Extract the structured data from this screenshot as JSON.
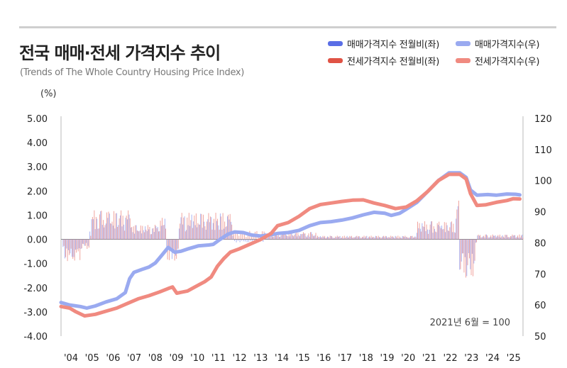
{
  "header": {
    "title": "전국 매매·전세 가격지수 추이",
    "subtitle": "(Trends of The Whole Country Housing Price Index)",
    "unit_left": "(%)"
  },
  "legend": [
    {
      "label": "매매가격지수 전월비(좌)",
      "color": "#5a6ee6"
    },
    {
      "label": "매매가격지수(우)",
      "color": "#9aaaf0"
    },
    {
      "label": "전세가격지수 전월비(좌)",
      "color": "#e05345"
    },
    {
      "label": "전세가격지수(우)",
      "color": "#f08a80"
    }
  ],
  "chart_data": {
    "type": "line",
    "left_axis": {
      "min": -4.0,
      "max": 5.0,
      "ticks": [
        "5.00",
        "4.00",
        "3.00",
        "2.00",
        "1.00",
        "0.00",
        "-1.00",
        "-2.00",
        "-3.00",
        "-4.00"
      ]
    },
    "right_axis": {
      "min": 50,
      "max": 120,
      "ticks": [
        "120",
        "110",
        "100",
        "90",
        "80",
        "70",
        "60",
        "50"
      ]
    },
    "x_ticks": [
      "'04",
      "'05",
      "'06",
      "'07",
      "'08",
      "'09",
      "'10",
      "'11",
      "'12",
      "'13",
      "'14",
      "'15",
      "'16",
      "'17",
      "'18",
      "'19",
      "'20",
      "'21",
      "'22",
      "'23",
      "'24",
      "'25"
    ],
    "note": "2021년 6월 = 100",
    "series_index": [
      {
        "name": "매매가격지수(우)",
        "color": "#9aaaf0",
        "points": [
          [
            2003.9,
            60.8
          ],
          [
            2004.3,
            60.0
          ],
          [
            2004.8,
            59.5
          ],
          [
            2005.1,
            59.0
          ],
          [
            2005.5,
            59.7
          ],
          [
            2006.0,
            61.0
          ],
          [
            2006.5,
            62.0
          ],
          [
            2006.9,
            64.0
          ],
          [
            2007.1,
            68.5
          ],
          [
            2007.3,
            70.5
          ],
          [
            2007.7,
            71.5
          ],
          [
            2008.0,
            72.2
          ],
          [
            2008.3,
            73.5
          ],
          [
            2008.6,
            76.0
          ],
          [
            2008.9,
            78.5
          ],
          [
            2009.2,
            77.0
          ],
          [
            2009.5,
            77.3
          ],
          [
            2009.8,
            78.0
          ],
          [
            2010.3,
            79.0
          ],
          [
            2010.8,
            79.3
          ],
          [
            2011.0,
            79.5
          ],
          [
            2011.3,
            81.0
          ],
          [
            2011.7,
            82.8
          ],
          [
            2012.0,
            83.5
          ],
          [
            2012.4,
            83.3
          ],
          [
            2012.8,
            82.5
          ],
          [
            2013.2,
            82.2
          ],
          [
            2013.6,
            82.5
          ],
          [
            2014.0,
            83.0
          ],
          [
            2014.5,
            83.3
          ],
          [
            2015.0,
            84.0
          ],
          [
            2015.5,
            85.5
          ],
          [
            2016.0,
            86.5
          ],
          [
            2016.5,
            86.8
          ],
          [
            2017.0,
            87.3
          ],
          [
            2017.5,
            88.0
          ],
          [
            2018.0,
            89.0
          ],
          [
            2018.5,
            89.8
          ],
          [
            2019.0,
            89.5
          ],
          [
            2019.3,
            88.8
          ],
          [
            2019.7,
            89.5
          ],
          [
            2020.0,
            90.8
          ],
          [
            2020.5,
            93.0
          ],
          [
            2021.0,
            96.5
          ],
          [
            2021.5,
            100.0
          ],
          [
            2022.0,
            102.5
          ],
          [
            2022.5,
            102.5
          ],
          [
            2022.8,
            101.0
          ],
          [
            2023.0,
            97.0
          ],
          [
            2023.3,
            95.3
          ],
          [
            2023.8,
            95.5
          ],
          [
            2024.2,
            95.3
          ],
          [
            2024.7,
            95.7
          ],
          [
            2025.1,
            95.6
          ],
          [
            2025.3,
            95.4
          ]
        ]
      },
      {
        "name": "전세가격지수(우)",
        "color": "#f08a80",
        "points": [
          [
            2003.9,
            59.5
          ],
          [
            2004.3,
            59.0
          ],
          [
            2004.6,
            57.8
          ],
          [
            2005.0,
            56.5
          ],
          [
            2005.5,
            57.0
          ],
          [
            2006.0,
            58.0
          ],
          [
            2006.5,
            59.0
          ],
          [
            2007.0,
            60.5
          ],
          [
            2007.5,
            62.0
          ],
          [
            2008.0,
            63.0
          ],
          [
            2008.5,
            64.2
          ],
          [
            2008.9,
            65.3
          ],
          [
            2009.1,
            65.8
          ],
          [
            2009.3,
            63.8
          ],
          [
            2009.8,
            64.5
          ],
          [
            2010.2,
            66.0
          ],
          [
            2010.6,
            67.5
          ],
          [
            2010.9,
            69.0
          ],
          [
            2011.2,
            72.5
          ],
          [
            2011.5,
            75.0
          ],
          [
            2011.8,
            77.0
          ],
          [
            2012.2,
            78.0
          ],
          [
            2012.7,
            79.5
          ],
          [
            2013.2,
            81.0
          ],
          [
            2013.7,
            83.0
          ],
          [
            2014.0,
            85.5
          ],
          [
            2014.5,
            86.5
          ],
          [
            2015.0,
            88.5
          ],
          [
            2015.5,
            91.0
          ],
          [
            2016.0,
            92.3
          ],
          [
            2016.5,
            92.8
          ],
          [
            2017.0,
            93.3
          ],
          [
            2017.5,
            93.7
          ],
          [
            2018.0,
            93.8
          ],
          [
            2018.5,
            92.8
          ],
          [
            2019.0,
            92.0
          ],
          [
            2019.5,
            91.0
          ],
          [
            2020.0,
            91.5
          ],
          [
            2020.5,
            93.5
          ],
          [
            2021.0,
            96.5
          ],
          [
            2021.5,
            100.0
          ],
          [
            2022.0,
            102.0
          ],
          [
            2022.5,
            102.0
          ],
          [
            2022.8,
            100.5
          ],
          [
            2023.0,
            95.8
          ],
          [
            2023.3,
            92.0
          ],
          [
            2023.7,
            92.2
          ],
          [
            2024.2,
            93.0
          ],
          [
            2024.7,
            93.6
          ],
          [
            2025.0,
            94.2
          ],
          [
            2025.3,
            94.1
          ]
        ]
      }
    ],
    "series_mom": [
      {
        "name": "매매가격지수 전월비(좌)",
        "color": "#5a6ee6",
        "values_note": "monthly % change"
      },
      {
        "name": "전세가격지수 전월비(좌)",
        "color": "#e05345",
        "values_note": "monthly % change"
      }
    ]
  }
}
